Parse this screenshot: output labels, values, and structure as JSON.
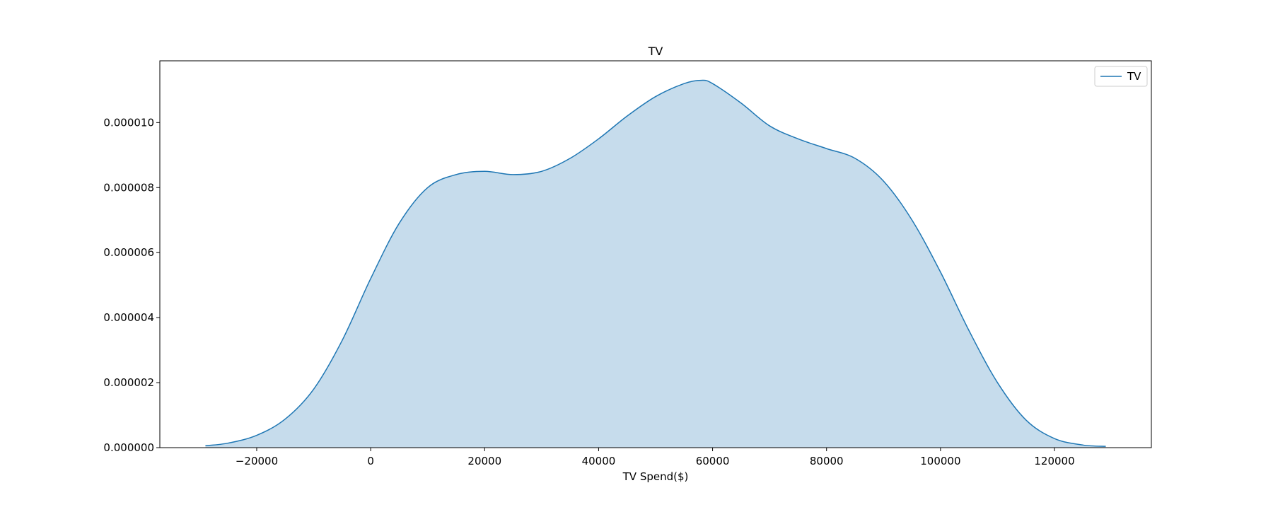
{
  "chart_data": {
    "type": "area",
    "title": "TV",
    "xlabel": "TV Spend($)",
    "ylabel": "",
    "xlim": [
      -37000,
      137000
    ],
    "ylim": [
      0,
      1.19e-05
    ],
    "x_ticks": [
      -20000,
      0,
      20000,
      40000,
      60000,
      80000,
      100000,
      120000
    ],
    "x_tick_labels": [
      "−20000",
      "0",
      "20000",
      "40000",
      "60000",
      "80000",
      "100000",
      "120000"
    ],
    "y_ticks": [
      0,
      2e-06,
      4e-06,
      6e-06,
      8e-06,
      1e-05
    ],
    "y_tick_labels": [
      "0.000000",
      "0.000002",
      "0.000004",
      "0.000006",
      "0.000008",
      "0.000010"
    ],
    "legend": {
      "position": "top-right",
      "entries": [
        "TV"
      ]
    },
    "grid": false,
    "series": [
      {
        "name": "TV",
        "color": "#1f77b4",
        "fill_color": "#c6dcec",
        "x": [
          -29000,
          -25000,
          -20000,
          -15000,
          -10000,
          -5000,
          0,
          5000,
          10000,
          15000,
          20000,
          25000,
          30000,
          35000,
          40000,
          45000,
          50000,
          55000,
          58000,
          60000,
          65000,
          70000,
          75000,
          80000,
          85000,
          90000,
          95000,
          100000,
          105000,
          110000,
          115000,
          120000,
          125000,
          129000
        ],
        "y": [
          6e-08,
          1.4e-07,
          3.8e-07,
          8.8e-07,
          1.8e-06,
          3.3e-06,
          5.2e-06,
          6.9e-06,
          8e-06,
          8.4e-06,
          8.5e-06,
          8.4e-06,
          8.5e-06,
          8.9e-06,
          9.5e-06,
          1.02e-05,
          1.08e-05,
          1.12e-05,
          1.13e-05,
          1.12e-05,
          1.06e-05,
          9.9e-06,
          9.5e-06,
          9.2e-06,
          8.9e-06,
          8.2e-06,
          7e-06,
          5.4e-06,
          3.6e-06,
          2e-06,
          8.5e-07,
          2.8e-07,
          8e-08,
          4e-08
        ]
      }
    ]
  }
}
